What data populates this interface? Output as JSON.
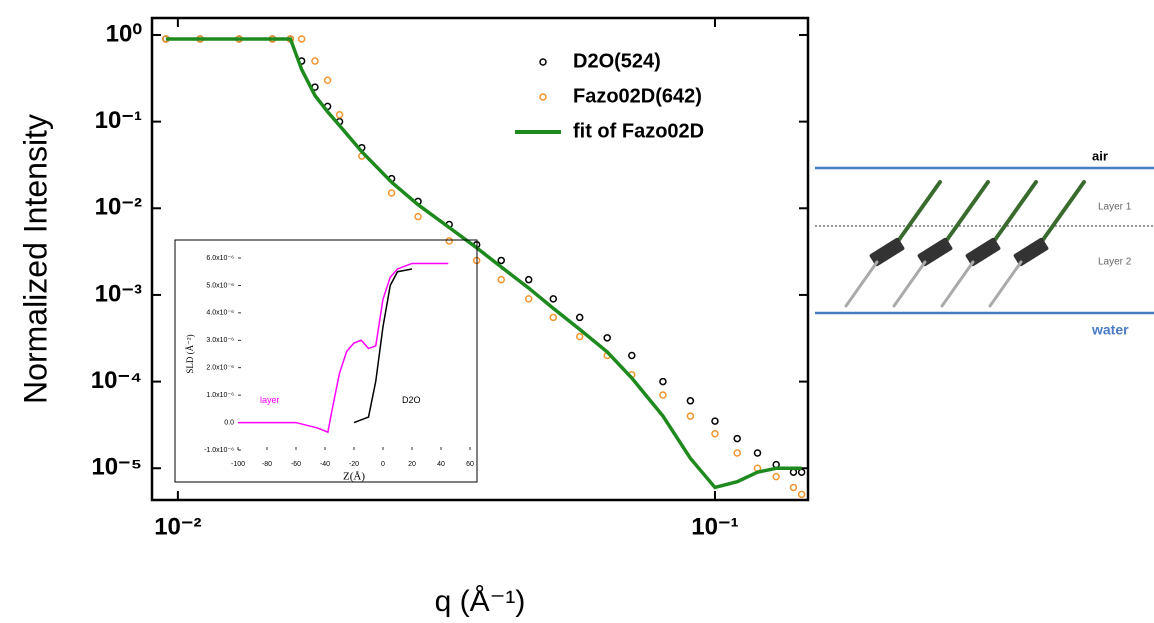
{
  "chart_data": [
    {
      "type": "scatter",
      "xlabel": "q (Å⁻¹)",
      "ylabel": "Normalized Intensity",
      "xscale": "log",
      "yscale": "log",
      "legend": "upper right",
      "xlim": [
        0.00895,
        0.149
      ],
      "ylim": [
        4.3e-06,
        1.57
      ],
      "xticks": [
        {
          "value": 0.01,
          "label": "10⁻²"
        },
        {
          "value": 0.1,
          "label": "10⁻¹"
        }
      ],
      "yticks": [
        {
          "value": 1,
          "label": "10⁰"
        },
        {
          "value": 0.1,
          "label": "10⁻¹"
        },
        {
          "value": 0.01,
          "label": "10⁻²"
        },
        {
          "value": 0.001,
          "label": "10⁻³"
        },
        {
          "value": 0.0001,
          "label": "10⁻⁴"
        },
        {
          "value": 1e-05,
          "label": "10⁻⁵"
        }
      ],
      "x": [
        0.0095,
        0.011,
        0.013,
        0.015,
        0.0162,
        0.017,
        0.018,
        0.019,
        0.02,
        0.022,
        0.025,
        0.028,
        0.032,
        0.036,
        0.04,
        0.045,
        0.05,
        0.056,
        0.063,
        0.07,
        0.08,
        0.09,
        0.1,
        0.11,
        0.12,
        0.13,
        0.14,
        0.145
      ],
      "series": [
        {
          "name": "D2O(524)",
          "color": "#000000",
          "mode": "markers",
          "values": [
            0.9,
            0.9,
            0.9,
            0.9,
            0.9,
            0.5,
            0.25,
            0.15,
            0.1,
            0.05,
            0.022,
            0.012,
            0.0065,
            0.0038,
            0.0025,
            0.0015,
            0.0009,
            0.00055,
            0.00032,
            0.0002,
            0.0001,
            6e-05,
            3.5e-05,
            2.2e-05,
            1.5e-05,
            1.1e-05,
            9e-06,
            9e-06
          ]
        },
        {
          "name": "Fazo02D(642)",
          "color": "#f39530",
          "mode": "markers",
          "values": [
            0.9,
            0.9,
            0.9,
            0.9,
            0.9,
            0.9,
            0.5,
            0.3,
            0.12,
            0.04,
            0.015,
            0.008,
            0.0042,
            0.0025,
            0.0015,
            0.0009,
            0.00055,
            0.00033,
            0.0002,
            0.00012,
            7e-05,
            4e-05,
            2.5e-05,
            1.5e-05,
            1e-05,
            8e-06,
            6e-06,
            5e-06
          ]
        },
        {
          "name": "fit of Fazo02D",
          "color": "#1e8a1e",
          "mode": "line",
          "values": [
            0.9,
            0.9,
            0.9,
            0.9,
            0.9,
            0.4,
            0.2,
            0.13,
            0.09,
            0.045,
            0.02,
            0.011,
            0.006,
            0.0035,
            0.0021,
            0.0012,
            0.0007,
            0.0004,
            0.00022,
            0.00011,
            4e-05,
            1.3e-05,
            6e-06,
            7e-06,
            9e-06,
            1e-05,
            1e-05,
            1e-05
          ]
        }
      ]
    },
    {
      "type": "line",
      "xlabel": "Z(Å)",
      "ylabel": "SLD (Å⁻²)",
      "legend": "inline",
      "xlim": [
        -100,
        60
      ],
      "ylim": [
        -1e-06,
        6e-06
      ],
      "xticks": [
        -100,
        -80,
        -60,
        -40,
        -20,
        0,
        20,
        40,
        60
      ],
      "yticks": [
        {
          "value": -1e-06,
          "label": "-1.0x10⁻⁶"
        },
        {
          "value": 0,
          "label": "0.0"
        },
        {
          "value": 1e-06,
          "label": "1.0x10⁻⁶"
        },
        {
          "value": 2e-06,
          "label": "2.0x10⁻⁶"
        },
        {
          "value": 3e-06,
          "label": "3.0x10⁻⁶"
        },
        {
          "value": 4e-06,
          "label": "4.0x10⁻⁶"
        },
        {
          "value": 5e-06,
          "label": "5.0x10⁻⁶"
        },
        {
          "value": 6e-06,
          "label": "6.0x10⁻⁶"
        }
      ],
      "series": [
        {
          "name": "layer",
          "color": "#ff00ff",
          "x": [
            -100,
            -60,
            -45,
            -38,
            -35,
            -30,
            -25,
            -20,
            -15,
            -10,
            -5,
            0,
            5,
            10,
            20,
            30,
            45
          ],
          "values": [
            0,
            0,
            -2e-07,
            -3.5e-07,
            5e-07,
            1.8e-06,
            2.6e-06,
            2.9e-06,
            3e-06,
            2.7e-06,
            2.8e-06,
            4.5e-06,
            5.3e-06,
            5.6e-06,
            5.8e-06,
            5.8e-06,
            5.8e-06
          ]
        },
        {
          "name": "D2O",
          "color": "#000000",
          "x": [
            -20,
            -10,
            -5,
            0,
            5,
            10,
            20
          ],
          "values": [
            0,
            2e-07,
            1.5e-06,
            3.5e-06,
            5e-06,
            5.5e-06,
            5.6e-06
          ]
        }
      ]
    }
  ],
  "diagram": {
    "top": "air",
    "layer1": "Layer 1",
    "layer2": "Layer 2",
    "bottom": "water"
  }
}
